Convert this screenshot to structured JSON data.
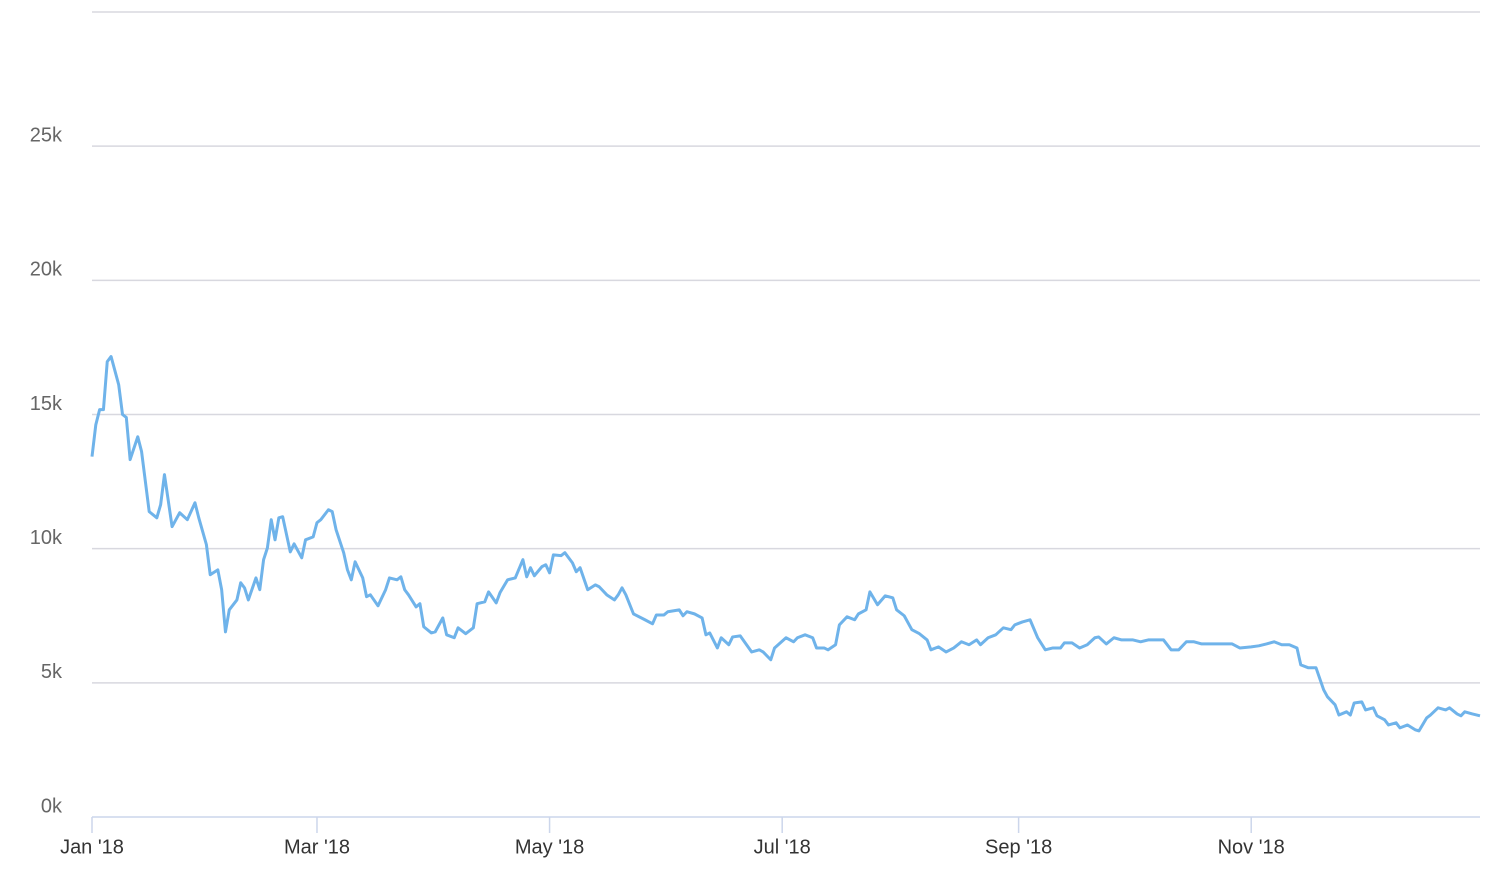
{
  "chart_data": {
    "type": "line",
    "color": "#6fb3ea",
    "grid": true,
    "xlim": [
      0,
      364
    ],
    "ylim": [
      0,
      30000
    ],
    "xticks": [
      {
        "value": 0,
        "label": "Jan '18"
      },
      {
        "value": 59,
        "label": "Mar '18"
      },
      {
        "value": 120,
        "label": "May '18"
      },
      {
        "value": 181,
        "label": "Jul '18"
      },
      {
        "value": 243,
        "label": "Sep '18"
      },
      {
        "value": 304,
        "label": "Nov '18"
      }
    ],
    "yticks": [
      {
        "value": 0,
        "label": "0k"
      },
      {
        "value": 5000,
        "label": "5k"
      },
      {
        "value": 10000,
        "label": "10k"
      },
      {
        "value": 15000,
        "label": "15k"
      },
      {
        "value": 20000,
        "label": "20k"
      },
      {
        "value": 25000,
        "label": "25k"
      }
    ],
    "x": [
      0,
      1,
      2,
      3,
      4,
      5,
      7,
      8,
      9,
      10,
      12,
      13,
      15,
      17,
      18,
      19,
      21,
      23,
      25,
      27,
      28,
      30,
      31,
      33,
      34,
      35,
      36,
      38,
      39,
      40,
      41,
      43,
      44,
      45,
      46,
      47,
      48,
      49,
      50,
      52,
      53,
      55,
      56,
      58,
      59,
      60,
      62,
      63,
      64,
      66,
      67,
      68,
      69,
      71,
      72,
      73,
      75,
      77,
      78,
      80,
      81,
      82,
      83,
      85,
      86,
      87,
      89,
      90,
      92,
      93,
      95,
      96,
      98,
      100,
      101,
      103,
      104,
      106,
      107,
      109,
      111,
      113,
      114,
      115,
      116,
      118,
      119,
      120,
      121,
      123,
      124,
      126,
      127,
      128,
      130,
      132,
      133,
      135,
      137,
      138,
      139,
      140,
      142,
      145,
      147,
      148,
      150,
      151,
      154,
      155,
      156,
      158,
      160,
      161,
      162,
      164,
      165,
      167,
      168,
      170,
      173,
      175,
      176,
      178,
      179,
      182,
      184,
      185,
      187,
      189,
      190,
      192,
      193,
      195,
      196,
      198,
      200,
      201,
      203,
      204,
      206,
      208,
      210,
      211,
      213,
      215,
      217,
      219,
      220,
      222,
      224,
      226,
      228,
      230,
      232,
      233,
      235,
      237,
      239,
      241,
      242,
      244,
      246,
      248,
      250,
      252,
      254,
      255,
      257,
      259,
      261,
      263,
      264,
      266,
      268,
      270,
      273,
      275,
      277,
      279,
      281,
      283,
      285,
      287,
      289,
      291,
      294,
      296,
      299,
      301,
      304,
      306,
      308,
      310,
      312,
      314,
      316,
      317,
      319,
      321,
      323,
      324,
      326,
      327,
      329,
      330,
      331,
      333,
      334,
      336,
      337,
      339,
      340,
      342,
      343,
      345,
      347,
      348,
      350,
      351,
      353,
      355,
      356,
      358,
      359,
      360,
      362,
      364
    ],
    "values": [
      13430,
      14620,
      15180,
      15180,
      16970,
      17160,
      16110,
      15000,
      14890,
      13320,
      14170,
      13620,
      11380,
      11150,
      11640,
      12760,
      10820,
      11340,
      11080,
      11710,
      11150,
      10150,
      9030,
      9210,
      8470,
      6900,
      7720,
      8090,
      8730,
      8540,
      8090,
      8910,
      8470,
      9590,
      10030,
      11080,
      10330,
      11150,
      11190,
      9880,
      10180,
      9660,
      10330,
      10440,
      10970,
      11080,
      11450,
      11380,
      10710,
      9850,
      9210,
      8840,
      9510,
      8910,
      8210,
      8280,
      7870,
      8470,
      8910,
      8840,
      8950,
      8470,
      8280,
      7830,
      7950,
      7090,
      6860,
      6900,
      7420,
      6790,
      6680,
      7050,
      6830,
      7050,
      7950,
      8020,
      8390,
      7980,
      8360,
      8840,
      8910,
      9590,
      8950,
      9290,
      8990,
      9330,
      9400,
      9100,
      9770,
      9740,
      9850,
      9470,
      9140,
      9290,
      8470,
      8650,
      8580,
      8280,
      8090,
      8280,
      8540,
      8280,
      7570,
      7350,
      7200,
      7530,
      7530,
      7650,
      7720,
      7500,
      7650,
      7570,
      7420,
      6790,
      6860,
      6300,
      6680,
      6420,
      6710,
      6750,
      6150,
      6230,
      6150,
      5860,
      6300,
      6680,
      6530,
      6680,
      6790,
      6680,
      6300,
      6300,
      6230,
      6420,
      7160,
      7460,
      7350,
      7570,
      7720,
      8390,
      7910,
      8240,
      8170,
      7720,
      7500,
      6980,
      6830,
      6600,
      6230,
      6340,
      6150,
      6300,
      6530,
      6420,
      6600,
      6420,
      6680,
      6790,
      7050,
      6980,
      7160,
      7270,
      7350,
      6680,
      6230,
      6300,
      6300,
      6490,
      6490,
      6300,
      6420,
      6680,
      6710,
      6450,
      6680,
      6600,
      6600,
      6530,
      6600,
      6600,
      6600,
      6230,
      6230,
      6530,
      6530,
      6450,
      6450,
      6450,
      6450,
      6300,
      6340,
      6380,
      6450,
      6530,
      6420,
      6420,
      6300,
      5670,
      5560,
      5560,
      4740,
      4480,
      4180,
      3800,
      3920,
      3800,
      4250,
      4290,
      3990,
      4070,
      3770,
      3620,
      3430,
      3510,
      3320,
      3430,
      3250,
      3210,
      3690,
      3800,
      4070,
      3990,
      4070,
      3840,
      3770,
      3920,
      3840,
      3770
    ]
  }
}
